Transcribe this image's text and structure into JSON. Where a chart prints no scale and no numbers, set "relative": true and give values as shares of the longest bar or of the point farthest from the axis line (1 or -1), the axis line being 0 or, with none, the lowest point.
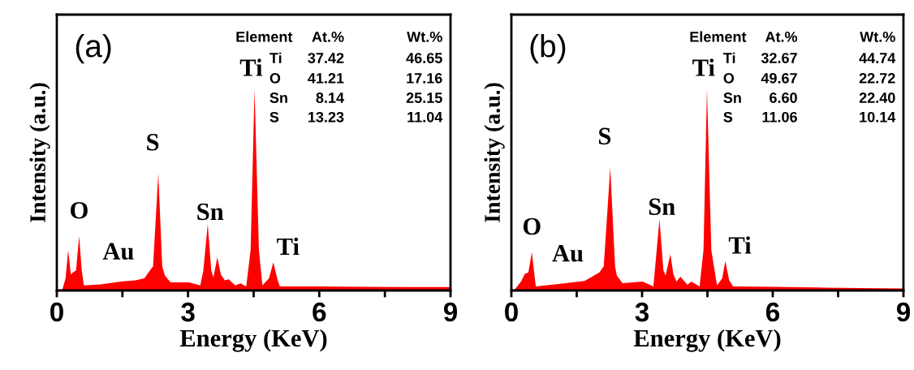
{
  "chart_data": [
    {
      "type": "area",
      "relative": true,
      "xlabel": "Energy (KeV)",
      "ylabel": "Intensity (a.u.)",
      "xlim": [
        0,
        9
      ],
      "xticks": [
        0,
        {
          "value": 1.5,
          "label": null
        },
        3,
        {
          "value": 4.5,
          "label": null
        },
        6,
        {
          "value": 7.5,
          "label": null
        },
        9
      ],
      "tick_labels": "x",
      "grid": false,
      "legend": false,
      "series": [
        {
          "color": "#ff0000",
          "x": [
            0.12,
            0.2,
            0.26,
            0.32,
            0.37,
            0.44,
            0.51,
            0.57,
            0.62,
            1.0,
            1.5,
            1.8,
            2.0,
            2.13,
            2.2,
            2.32,
            2.41,
            2.47,
            2.6,
            3.02,
            3.28,
            3.35,
            3.45,
            3.53,
            3.58,
            3.67,
            3.75,
            3.84,
            3.93,
            4.08,
            4.2,
            4.33,
            4.43,
            4.52,
            4.62,
            4.7,
            4.85,
            4.95,
            5.05,
            5.1,
            6.0,
            7.0,
            8.0,
            9.0
          ],
          "values": [
            0.0,
            0.06,
            0.2,
            0.08,
            0.09,
            0.1,
            0.27,
            0.1,
            0.025,
            0.03,
            0.045,
            0.05,
            0.06,
            0.1,
            0.12,
            0.58,
            0.12,
            0.075,
            0.04,
            0.04,
            0.025,
            0.1,
            0.33,
            0.1,
            0.065,
            0.165,
            0.08,
            0.05,
            0.055,
            0.025,
            0.035,
            0.02,
            0.2,
            1.0,
            0.2,
            0.025,
            0.06,
            0.14,
            0.05,
            0.02,
            0.02,
            0.018,
            0.017,
            0.017
          ]
        }
      ],
      "annotations": [
        "(a)",
        {
          "text": "O",
          "x": 0.51,
          "y": 0.27
        },
        {
          "text": "Au",
          "x": 2.13,
          "y": 0.1
        },
        {
          "text": "S",
          "x": 2.32,
          "y": 0.58
        },
        {
          "text": "Sn",
          "x": 3.45,
          "y": 0.33
        },
        {
          "text": "Ti",
          "x": 4.52,
          "y": 1.0
        },
        {
          "text": "Ti",
          "x": 4.95,
          "y": 0.14
        },
        "Element",
        "At.%",
        "Wt.%",
        "Ti",
        "37.42",
        "46.65",
        "O",
        "41.21",
        "17.16",
        "Sn",
        "8.14",
        "25.15",
        "S",
        "13.23",
        "11.04"
      ]
    },
    {
      "type": "area",
      "relative": true,
      "xlabel": "Energy (KeV)",
      "ylabel": "Intensity (a.u.)",
      "xlim": [
        0,
        9
      ],
      "xticks": [
        0,
        {
          "value": 1.5,
          "label": null
        },
        3,
        {
          "value": 4.5,
          "label": null
        },
        6,
        {
          "value": 7.5,
          "label": null
        },
        9
      ],
      "tick_labels": "x",
      "grid": false,
      "legend": false,
      "series": [
        {
          "color": "#ff0000",
          "x": [
            0.06,
            0.22,
            0.31,
            0.39,
            0.47,
            0.56,
            1.0,
            1.68,
            2.02,
            2.12,
            2.27,
            2.38,
            2.42,
            2.55,
            3.01,
            3.26,
            3.4,
            3.49,
            3.54,
            3.65,
            3.72,
            3.79,
            3.88,
            4.04,
            4.13,
            4.32,
            4.41,
            4.49,
            4.59,
            4.72,
            4.84,
            4.91,
            5.0,
            5.09,
            6.0,
            7.0,
            8.0,
            9.0
          ],
          "values": [
            0.0,
            0.044,
            0.083,
            0.09,
            0.19,
            0.02,
            0.03,
            0.047,
            0.09,
            0.12,
            0.61,
            0.12,
            0.075,
            0.036,
            0.044,
            0.02,
            0.355,
            0.1,
            0.075,
            0.18,
            0.08,
            0.044,
            0.068,
            0.028,
            0.044,
            0.02,
            0.2,
            1.0,
            0.2,
            0.025,
            0.06,
            0.146,
            0.05,
            0.02,
            0.018,
            0.015,
            0.012,
            0.01
          ]
        }
      ],
      "annotations": [
        "(b)",
        {
          "text": "O",
          "x": 0.47,
          "y": 0.19
        },
        {
          "text": "Au",
          "x": 2.02,
          "y": 0.09
        },
        {
          "text": "S",
          "x": 2.27,
          "y": 0.61
        },
        {
          "text": "Sn",
          "x": 3.4,
          "y": 0.355
        },
        {
          "text": "Ti",
          "x": 4.49,
          "y": 1.0
        },
        {
          "text": "Ti",
          "x": 4.91,
          "y": 0.146
        },
        "Element",
        "At.%",
        "Wt.%",
        "Ti",
        "32.67",
        "44.74",
        "O",
        "49.67",
        "22.72",
        "Sn",
        "6.60",
        "22.40",
        "S",
        "11.06",
        "10.14"
      ]
    }
  ]
}
